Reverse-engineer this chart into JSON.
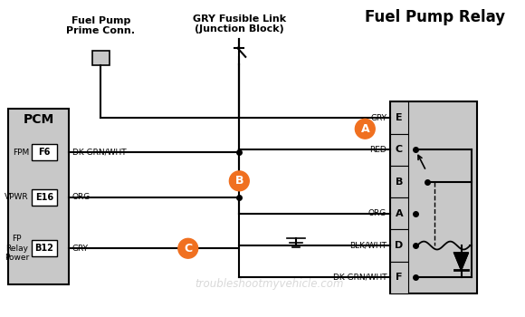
{
  "bg_color": "#ffffff",
  "gray": "#c8c8c8",
  "black": "#000000",
  "orange": "#F07020",
  "white": "#ffffff",
  "watermark": "troubleshootmyvehicle.com",
  "title": "Fuel Pump Relay",
  "fp_prime_label": [
    "Fuel Pump",
    "Prime Conn."
  ],
  "fusible_label": [
    "GRY Fusible Link",
    "(Junction Block)"
  ],
  "pcm_label": "PCM",
  "pin_rows": [
    {
      "row_label": "FPM",
      "pin": "F6",
      "wire": "DK GRN/WHT"
    },
    {
      "row_label": "VPWR",
      "pin": "E16",
      "wire": "ORG"
    },
    {
      "row_label": "FP\nRelay\nPower",
      "pin": "B12",
      "wire": "GRY"
    }
  ],
  "relay_terminals": [
    "E",
    "C",
    "B",
    "A",
    "D",
    "F"
  ],
  "relay_wire_labels": [
    "GRY",
    "RED",
    "",
    "ORG",
    "BLK/WHT",
    "DK GRN/WHT"
  ]
}
